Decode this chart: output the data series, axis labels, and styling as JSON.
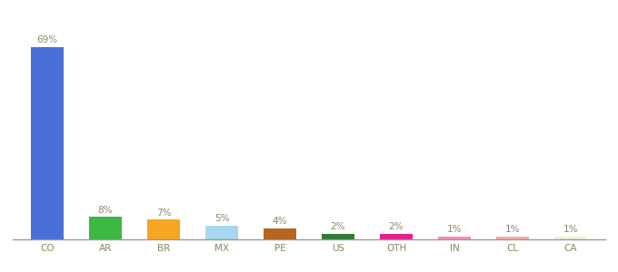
{
  "categories": [
    "CO",
    "AR",
    "BR",
    "MX",
    "PE",
    "US",
    "OTH",
    "IN",
    "CL",
    "CA"
  ],
  "values": [
    69,
    8,
    7,
    5,
    4,
    2,
    2,
    1,
    1,
    1
  ],
  "labels": [
    "69%",
    "8%",
    "7%",
    "5%",
    "4%",
    "2%",
    "2%",
    "1%",
    "1%",
    "1%"
  ],
  "colors": [
    "#4a6fd8",
    "#3cb843",
    "#f5a623",
    "#a8d8f0",
    "#b5651d",
    "#2e7d32",
    "#e91e8c",
    "#f48fb1",
    "#f4a9a8",
    "#f5f0d8"
  ],
  "background_color": "#ffffff",
  "ylim": [
    0,
    78
  ],
  "label_fontsize": 7.5,
  "tick_fontsize": 7.5,
  "bar_width": 0.55
}
